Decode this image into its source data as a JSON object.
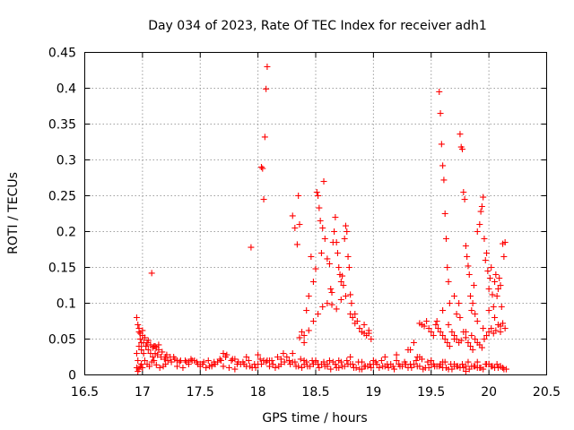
{
  "chart_data": {
    "type": "scatter",
    "title": "Day 034 of 2023, Rate Of TEC Index for receiver adh1",
    "xlabel": "GPS time / hours",
    "ylabel": "ROTI / TECUs",
    "xlim": [
      16.5,
      20.5
    ],
    "ylim": [
      0,
      0.45
    ],
    "xticks": [
      "16.5",
      "17",
      "17.5",
      "18",
      "18.5",
      "19",
      "19.5",
      "20",
      "20.5"
    ],
    "yticks": [
      "0",
      "0.05",
      "0.1",
      "0.15",
      "0.2",
      "0.25",
      "0.3",
      "0.35",
      "0.4",
      "0.45"
    ],
    "grid": true,
    "marker": "+",
    "color": "#ff0000",
    "series": [
      {
        "x": [
          16.95,
          16.96,
          16.97,
          16.98,
          16.99,
          17.0,
          17.02,
          17.04,
          17.06,
          17.08,
          17.1,
          17.12,
          17.15,
          17.18,
          17.2,
          17.25,
          17.3,
          17.35,
          17.4,
          17.45,
          17.5,
          17.55,
          17.6,
          17.65,
          17.7,
          17.75,
          17.8,
          17.85,
          17.9,
          17.95,
          18.0,
          18.05,
          18.1,
          18.15,
          18.2,
          18.25,
          18.3,
          18.35,
          18.4,
          18.45,
          18.5,
          18.55,
          18.6,
          18.65,
          18.7,
          18.75,
          18.8,
          18.85,
          18.9,
          18.95,
          19.0,
          19.05,
          19.1,
          19.15,
          19.2,
          19.25,
          19.3,
          19.35,
          19.4,
          19.45,
          19.5,
          19.55,
          19.6,
          19.65,
          19.7,
          19.75,
          19.8,
          19.85,
          19.9,
          19.95,
          20.0,
          20.05,
          20.1,
          20.15,
          16.95,
          16.97,
          16.99,
          17.01,
          17.03,
          17.05,
          17.07,
          17.09,
          17.11,
          17.13,
          17.16,
          17.19,
          17.22,
          17.27,
          17.32,
          17.37,
          17.42,
          17.47,
          17.52,
          17.57,
          17.62,
          17.67,
          17.72,
          17.77,
          17.82,
          17.87,
          17.92,
          17.97,
          18.02,
          18.07,
          18.12,
          18.17,
          18.22,
          18.27,
          18.32,
          18.37,
          18.42,
          18.47,
          18.52,
          18.57,
          18.62,
          18.67,
          18.72,
          18.77,
          18.82,
          18.87,
          18.92,
          18.97,
          19.02,
          19.07,
          19.12,
          19.17,
          19.22,
          19.27,
          19.32,
          19.37,
          19.42,
          19.47,
          19.52,
          19.57,
          19.62,
          19.67,
          19.72,
          19.77,
          19.82,
          19.87,
          19.92,
          19.97,
          20.02,
          20.07,
          20.12,
          16.96,
          16.97,
          16.98,
          16.99,
          17.0,
          17.01,
          17.03,
          17.05,
          17.07,
          17.09,
          17.11,
          17.14,
          17.17,
          17.21,
          17.24,
          17.28,
          17.33,
          17.38,
          17.43,
          17.48,
          17.53,
          17.58,
          17.63,
          17.68,
          17.73,
          17.78,
          17.83,
          17.88,
          17.93,
          17.98,
          18.03,
          18.08,
          18.13,
          18.18,
          18.23,
          18.28,
          18.33,
          18.38,
          18.43,
          18.48,
          18.53,
          18.58,
          18.63,
          18.68,
          18.73,
          18.78,
          18.83,
          18.88,
          18.93,
          18.98,
          19.03,
          19.08,
          19.13,
          19.18,
          19.23,
          19.28,
          19.33,
          19.38,
          19.43,
          19.48,
          19.53,
          19.58,
          19.63,
          19.68,
          19.73,
          19.78,
          19.83,
          19.88,
          19.93,
          19.98,
          20.03,
          20.08,
          20.13,
          16.95,
          16.96,
          16.97,
          16.98,
          17.0,
          17.02,
          17.04,
          17.1,
          17.12,
          17.14,
          17.2,
          17.3,
          17.4,
          17.5,
          17.6,
          17.7,
          17.8,
          17.9,
          18.0,
          18.1,
          18.2,
          18.3,
          18.4,
          18.5,
          18.6,
          18.7,
          18.8,
          18.9,
          19.0,
          19.1,
          19.2,
          19.3,
          19.4,
          19.5,
          19.6,
          19.7,
          19.8,
          19.9,
          20.0,
          20.1,
          17.08,
          17.94,
          18.03,
          18.04,
          18.05,
          18.06,
          18.07,
          18.08,
          18.3,
          18.32,
          18.34,
          18.35,
          18.36,
          18.38,
          18.4,
          18.42,
          18.44,
          18.46,
          18.48,
          18.5,
          18.51,
          18.52,
          18.53,
          18.54,
          18.55,
          18.56,
          18.57,
          18.58,
          18.6,
          18.62,
          18.63,
          18.64,
          18.65,
          18.66,
          18.67,
          18.68,
          18.69,
          18.7,
          18.71,
          18.72,
          18.73,
          18.74,
          18.75,
          18.76,
          18.77,
          18.78,
          18.79,
          18.8,
          18.81,
          18.82,
          18.84,
          18.86,
          18.88,
          18.9,
          18.92,
          18.94,
          18.96,
          18.98,
          18.36,
          18.4,
          18.44,
          18.48,
          18.52,
          18.56,
          18.6,
          18.64,
          18.68,
          18.72,
          18.76,
          18.8,
          18.84,
          18.88,
          18.92,
          18.96,
          19.32,
          19.35,
          19.38,
          19.4,
          19.42,
          19.44,
          19.46,
          19.48,
          19.5,
          19.52,
          19.54,
          19.56,
          19.58,
          19.6,
          19.62,
          19.64,
          19.66,
          19.68,
          19.7,
          19.72,
          19.74,
          19.76,
          19.78,
          19.8,
          19.82,
          19.84,
          19.86,
          19.88,
          19.9,
          19.92,
          19.94,
          19.96,
          19.98,
          20.0,
          20.02,
          20.04,
          20.06,
          20.08,
          20.1,
          20.12,
          20.14,
          19.57,
          19.58,
          19.59,
          19.6,
          19.61,
          19.62,
          19.63,
          19.64,
          19.65,
          19.66,
          19.7,
          19.72,
          19.74,
          19.75,
          19.76,
          19.77,
          19.78,
          19.79,
          19.8,
          19.81,
          19.82,
          19.83,
          19.84,
          19.85,
          19.86,
          19.87,
          19.88,
          19.9,
          19.92,
          19.93,
          19.94,
          19.95,
          19.96,
          19.97,
          19.98,
          19.99,
          20.0,
          20.01,
          20.02,
          20.03,
          20.04,
          20.05,
          20.06,
          20.07,
          20.08,
          20.09,
          20.1,
          20.11,
          20.12,
          20.13,
          20.14,
          19.55,
          19.6,
          19.65,
          19.7,
          19.75,
          19.8,
          19.85,
          19.9,
          19.95,
          20.0,
          20.05,
          20.1
        ],
        "y": [
          0.01,
          0.02,
          0.008,
          0.012,
          0.015,
          0.01,
          0.02,
          0.015,
          0.012,
          0.018,
          0.02,
          0.014,
          0.01,
          0.012,
          0.015,
          0.018,
          0.012,
          0.01,
          0.015,
          0.02,
          0.012,
          0.01,
          0.014,
          0.018,
          0.012,
          0.01,
          0.008,
          0.015,
          0.012,
          0.01,
          0.015,
          0.02,
          0.012,
          0.01,
          0.015,
          0.025,
          0.018,
          0.012,
          0.015,
          0.012,
          0.02,
          0.015,
          0.012,
          0.018,
          0.01,
          0.012,
          0.015,
          0.01,
          0.008,
          0.012,
          0.015,
          0.01,
          0.012,
          0.015,
          0.02,
          0.012,
          0.01,
          0.015,
          0.012,
          0.01,
          0.015,
          0.012,
          0.01,
          0.008,
          0.012,
          0.01,
          0.005,
          0.012,
          0.01,
          0.008,
          0.015,
          0.01,
          0.012,
          0.008,
          0.03,
          0.04,
          0.035,
          0.03,
          0.04,
          0.035,
          0.03,
          0.025,
          0.03,
          0.028,
          0.025,
          0.022,
          0.02,
          0.025,
          0.018,
          0.02,
          0.022,
          0.018,
          0.015,
          0.02,
          0.018,
          0.022,
          0.025,
          0.02,
          0.015,
          0.018,
          0.02,
          0.015,
          0.022,
          0.018,
          0.02,
          0.025,
          0.03,
          0.02,
          0.018,
          0.022,
          0.018,
          0.02,
          0.015,
          0.018,
          0.02,
          0.015,
          0.018,
          0.02,
          0.015,
          0.018,
          0.012,
          0.015,
          0.018,
          0.02,
          0.015,
          0.012,
          0.015,
          0.018,
          0.015,
          0.02,
          0.022,
          0.018,
          0.015,
          0.012,
          0.018,
          0.015,
          0.012,
          0.015,
          0.018,
          0.012,
          0.01,
          0.015,
          0.012,
          0.015,
          0.01,
          0.005,
          0.06,
          0.05,
          0.045,
          0.055,
          0.045,
          0.04,
          0.048,
          0.042,
          0.038,
          0.04,
          0.035,
          0.032,
          0.028,
          0.025,
          0.022,
          0.02,
          0.018,
          0.02,
          0.015,
          0.018,
          0.012,
          0.015,
          0.02,
          0.028,
          0.022,
          0.018,
          0.015,
          0.012,
          0.01,
          0.015,
          0.02,
          0.015,
          0.012,
          0.018,
          0.015,
          0.012,
          0.01,
          0.012,
          0.015,
          0.01,
          0.012,
          0.008,
          0.01,
          0.012,
          0.015,
          0.01,
          0.008,
          0.012,
          0.01,
          0.015,
          0.012,
          0.01,
          0.008,
          0.012,
          0.015,
          0.01,
          0.012,
          0.008,
          0.01,
          0.012,
          0.015,
          0.01,
          0.008,
          0.012,
          0.01,
          0.008,
          0.012,
          0.01,
          0.015,
          0.012,
          0.01,
          0.008,
          0.08,
          0.07,
          0.065,
          0.058,
          0.062,
          0.052,
          0.045,
          0.04,
          0.038,
          0.042,
          0.025,
          0.02,
          0.018,
          0.015,
          0.012,
          0.03,
          0.022,
          0.025,
          0.028,
          0.02,
          0.022,
          0.03,
          0.02,
          0.018,
          0.015,
          0.02,
          0.025,
          0.018,
          0.02,
          0.025,
          0.028,
          0.035,
          0.025,
          0.02,
          0.018,
          0.015,
          0.012,
          0.018,
          0.015,
          0.012,
          0.142,
          0.178,
          0.29,
          0.288,
          0.245,
          0.332,
          0.399,
          0.43,
          0.222,
          0.205,
          0.182,
          0.25,
          0.21,
          0.06,
          0.055,
          0.09,
          0.11,
          0.165,
          0.13,
          0.148,
          0.255,
          0.25,
          0.233,
          0.215,
          0.17,
          0.205,
          0.27,
          0.19,
          0.162,
          0.155,
          0.12,
          0.115,
          0.185,
          0.2,
          0.22,
          0.185,
          0.17,
          0.15,
          0.14,
          0.13,
          0.138,
          0.125,
          0.19,
          0.208,
          0.2,
          0.165,
          0.15,
          0.112,
          0.1,
          0.08,
          0.085,
          0.075,
          0.065,
          0.06,
          0.07,
          0.055,
          0.058,
          0.05,
          0.052,
          0.045,
          0.062,
          0.075,
          0.085,
          0.095,
          0.1,
          0.098,
          0.092,
          0.105,
          0.11,
          0.085,
          0.072,
          0.065,
          0.058,
          0.062,
          0.035,
          0.045,
          0.025,
          0.072,
          0.07,
          0.068,
          0.075,
          0.065,
          0.06,
          0.055,
          0.07,
          0.065,
          0.06,
          0.055,
          0.05,
          0.045,
          0.04,
          0.06,
          0.055,
          0.05,
          0.045,
          0.048,
          0.06,
          0.052,
          0.045,
          0.04,
          0.035,
          0.05,
          0.045,
          0.042,
          0.038,
          0.05,
          0.055,
          0.06,
          0.065,
          0.058,
          0.062,
          0.07,
          0.068,
          0.072,
          0.065,
          0.395,
          0.365,
          0.322,
          0.292,
          0.272,
          0.225,
          0.19,
          0.15,
          0.13,
          0.1,
          0.11,
          0.085,
          0.1,
          0.336,
          0.318,
          0.315,
          0.255,
          0.245,
          0.18,
          0.165,
          0.152,
          0.14,
          0.11,
          0.09,
          0.1,
          0.125,
          0.085,
          0.2,
          0.21,
          0.228,
          0.235,
          0.248,
          0.19,
          0.16,
          0.17,
          0.145,
          0.12,
          0.135,
          0.15,
          0.112,
          0.095,
          0.13,
          0.14,
          0.11,
          0.12,
          0.135,
          0.125,
          0.095,
          0.183,
          0.165,
          0.185,
          0.075,
          0.09,
          0.07,
          0.05,
          0.08,
          0.06,
          0.055,
          0.075,
          0.065,
          0.09,
          0.08,
          0.06
        ]
      }
    ]
  }
}
